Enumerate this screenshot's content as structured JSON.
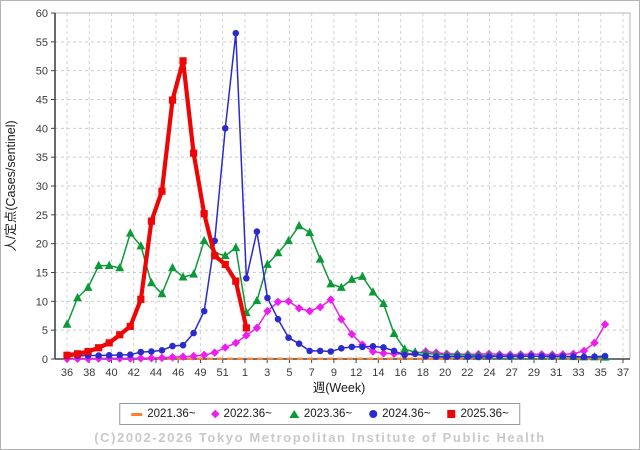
{
  "footer": "(C)2002-2026 Tokyo Metropolitan Institute of Public Health",
  "chart_data": {
    "type": "line",
    "title": "",
    "xlabel": "週(Week)",
    "ylabel": "人/定点(Cases/sentinel)",
    "ylim": [
      0,
      60
    ],
    "grid": true,
    "legend_position": "bottom",
    "y_ticks": [
      0,
      5,
      10,
      15,
      20,
      25,
      30,
      35,
      40,
      45,
      50,
      55,
      60
    ],
    "x_tick_labels": [
      "36",
      "38",
      "40",
      "42",
      "44",
      "46",
      "49",
      "51",
      "1",
      "3",
      "5",
      "7",
      "9",
      "12",
      "14",
      "16",
      "18",
      "20",
      "22",
      "24",
      "27",
      "29",
      "31",
      "33",
      "35",
      "37"
    ],
    "weeks": [
      36,
      37,
      38,
      39,
      40,
      41,
      42,
      43,
      44,
      45,
      46,
      47,
      48,
      49,
      50,
      51,
      52,
      1,
      2,
      3,
      4,
      5,
      6,
      7,
      8,
      9,
      10,
      11,
      12,
      13,
      14,
      15,
      16,
      17,
      18,
      19,
      20,
      21,
      22,
      23,
      24,
      25,
      26,
      27,
      28,
      29,
      30,
      31,
      32,
      33,
      34,
      35
    ],
    "series": [
      {
        "name": "2021.36~",
        "color": "#ff7f2a",
        "marker": "dash",
        "dashed": true,
        "width": 2.2,
        "marker_size": 0,
        "values": [
          0.05,
          0.05,
          0.05,
          0.05,
          0.05,
          0.05,
          0.05,
          0.05,
          0.05,
          0.05,
          0.05,
          0.05,
          0.05,
          0.05,
          0.05,
          0.05,
          0.05,
          0.05,
          0.05,
          0.05,
          0.05,
          0.05,
          0.05,
          0.05,
          0.05,
          0.05,
          0.05,
          0.05,
          0.05,
          0.05,
          0.05,
          0.05,
          0.05,
          0.05,
          0.05,
          0.05,
          0.05,
          0.05,
          0.05,
          0.05,
          0.05,
          0.05,
          0.05,
          0.05,
          0.05,
          0.05,
          0.05,
          0.05,
          0.05,
          0.05,
          0.05,
          0.05
        ]
      },
      {
        "name": "2022.36~",
        "color": "#ee1cee",
        "marker": "diamond",
        "dashed": false,
        "width": 1.5,
        "marker_size": 3,
        "values": [
          0.05,
          0.05,
          0.05,
          0.08,
          0.1,
          0.1,
          0.1,
          0.12,
          0.15,
          0.2,
          0.3,
          0.4,
          0.5,
          0.7,
          1.1,
          2.0,
          2.8,
          4.1,
          5.4,
          8.3,
          9.9,
          10.0,
          8.8,
          8.3,
          9.0,
          10.3,
          6.9,
          4.3,
          2.5,
          1.3,
          1.0,
          0.9,
          0.85,
          1.0,
          1.3,
          1.1,
          0.9,
          0.85,
          0.8,
          0.85,
          0.9,
          0.8,
          0.75,
          0.8,
          0.85,
          0.8,
          0.75,
          0.8,
          0.9,
          1.4,
          2.8,
          6.0
        ]
      },
      {
        "name": "2023.36~",
        "color": "#0c9a38",
        "marker": "triangle",
        "dashed": false,
        "width": 1.5,
        "marker_size": 4.4,
        "values": [
          6.0,
          10.6,
          12.4,
          16.2,
          16.2,
          15.8,
          21.8,
          19.6,
          13.2,
          11.3,
          15.8,
          14.2,
          14.7,
          20.5,
          18.4,
          17.9,
          19.3,
          8.0,
          10.1,
          16.4,
          18.4,
          20.5,
          23.1,
          21.9,
          17.3,
          13.0,
          12.4,
          13.8,
          14.3,
          11.6,
          9.6,
          4.4,
          1.7,
          1.2,
          1.0,
          0.8,
          0.7,
          0.8,
          0.7,
          0.6,
          0.6,
          0.5,
          0.5,
          0.55,
          0.5,
          0.45,
          0.5,
          0.45,
          0.4,
          0.35,
          0.35,
          0.3
        ]
      },
      {
        "name": "2024.36~",
        "color": "#2a2acd",
        "marker": "circle",
        "dashed": false,
        "width": 1.5,
        "marker_size": 3.3,
        "values": [
          0.5,
          0.55,
          0.6,
          0.6,
          0.65,
          0.7,
          0.75,
          1.2,
          1.3,
          1.5,
          2.25,
          2.4,
          4.5,
          8.3,
          20.5,
          40.0,
          56.5,
          14.0,
          22.1,
          10.6,
          6.9,
          3.7,
          2.65,
          1.4,
          1.4,
          1.3,
          1.85,
          2.1,
          2.1,
          2.2,
          2.0,
          1.4,
          0.7,
          0.9,
          0.5,
          0.4,
          0.4,
          0.45,
          0.4,
          0.35,
          0.4,
          0.45,
          0.4,
          0.45,
          0.5,
          0.45,
          0.4,
          0.45,
          0.4,
          0.35,
          0.4,
          0.5
        ]
      },
      {
        "name": "2025.36~",
        "color": "#ee0505",
        "marker": "square",
        "dashed": false,
        "width": 4.2,
        "marker_size": 3.6,
        "values": [
          0.65,
          0.9,
          1.3,
          1.95,
          2.8,
          4.2,
          5.65,
          10.35,
          23.9,
          29.1,
          44.9,
          51.7,
          35.7,
          25.2,
          17.9,
          16.4,
          13.5,
          5.4,
          null,
          null,
          null,
          null,
          null,
          null,
          null,
          null,
          null,
          null,
          null,
          null,
          null,
          null,
          null,
          null,
          null,
          null,
          null,
          null,
          null,
          null,
          null,
          null,
          null,
          null,
          null,
          null,
          null,
          null,
          null,
          null,
          null,
          null
        ]
      }
    ]
  }
}
